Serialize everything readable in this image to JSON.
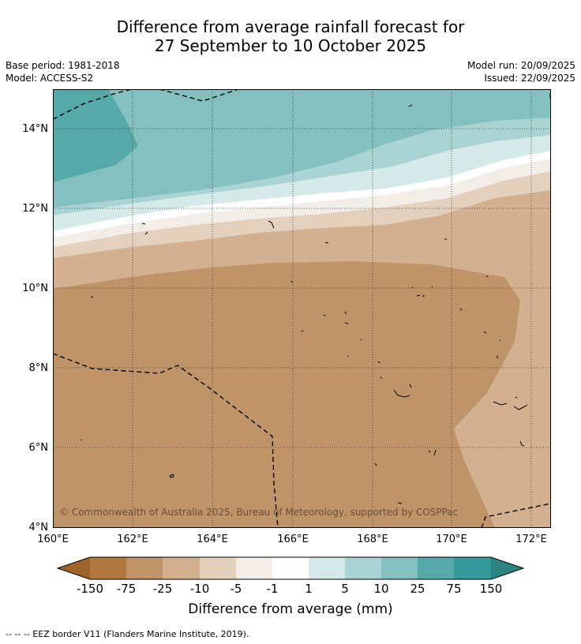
{
  "title": {
    "line1": "Difference from average rainfall forecast for",
    "line2": "27 September to 10 October 2025"
  },
  "meta": {
    "base_period": "Base period: 1981-2018",
    "model": "Model: ACCESS-S2",
    "model_run": "Model run: 20/09/2025",
    "issued": "Issued: 22/09/2025"
  },
  "map": {
    "lon_range": [
      160,
      172.4
    ],
    "lat_range": [
      4,
      15
    ],
    "lon_ticks": [
      "160°E",
      "162°E",
      "164°E",
      "166°E",
      "168°E",
      "170°E",
      "172°E"
    ],
    "lat_ticks": [
      "4°N",
      "6°N",
      "8°N",
      "10°N",
      "12°N",
      "14°N"
    ],
    "copyright": "© Commonwealth of Australia 2025, Bureau of Meteorology, supported by COSPPac"
  },
  "colorbar": {
    "title": "Difference from average (mm)",
    "labels": [
      "-150",
      "-75",
      "-25",
      "-10",
      "-5",
      "-1",
      "1",
      "5",
      "10",
      "25",
      "75",
      "150"
    ],
    "colors": [
      "#a0642b",
      "#b0773e",
      "#c09469",
      "#d3b08f",
      "#e3d0bd",
      "#f2ede7",
      "#ffffff",
      "#d5e9e8",
      "#aad4d4",
      "#85c0c0",
      "#56a9a9",
      "#36999a",
      "#2e8383"
    ]
  },
  "footnote": "--  --  -- EEZ border V11 (Flanders Marine Institute, 2019)."
}
